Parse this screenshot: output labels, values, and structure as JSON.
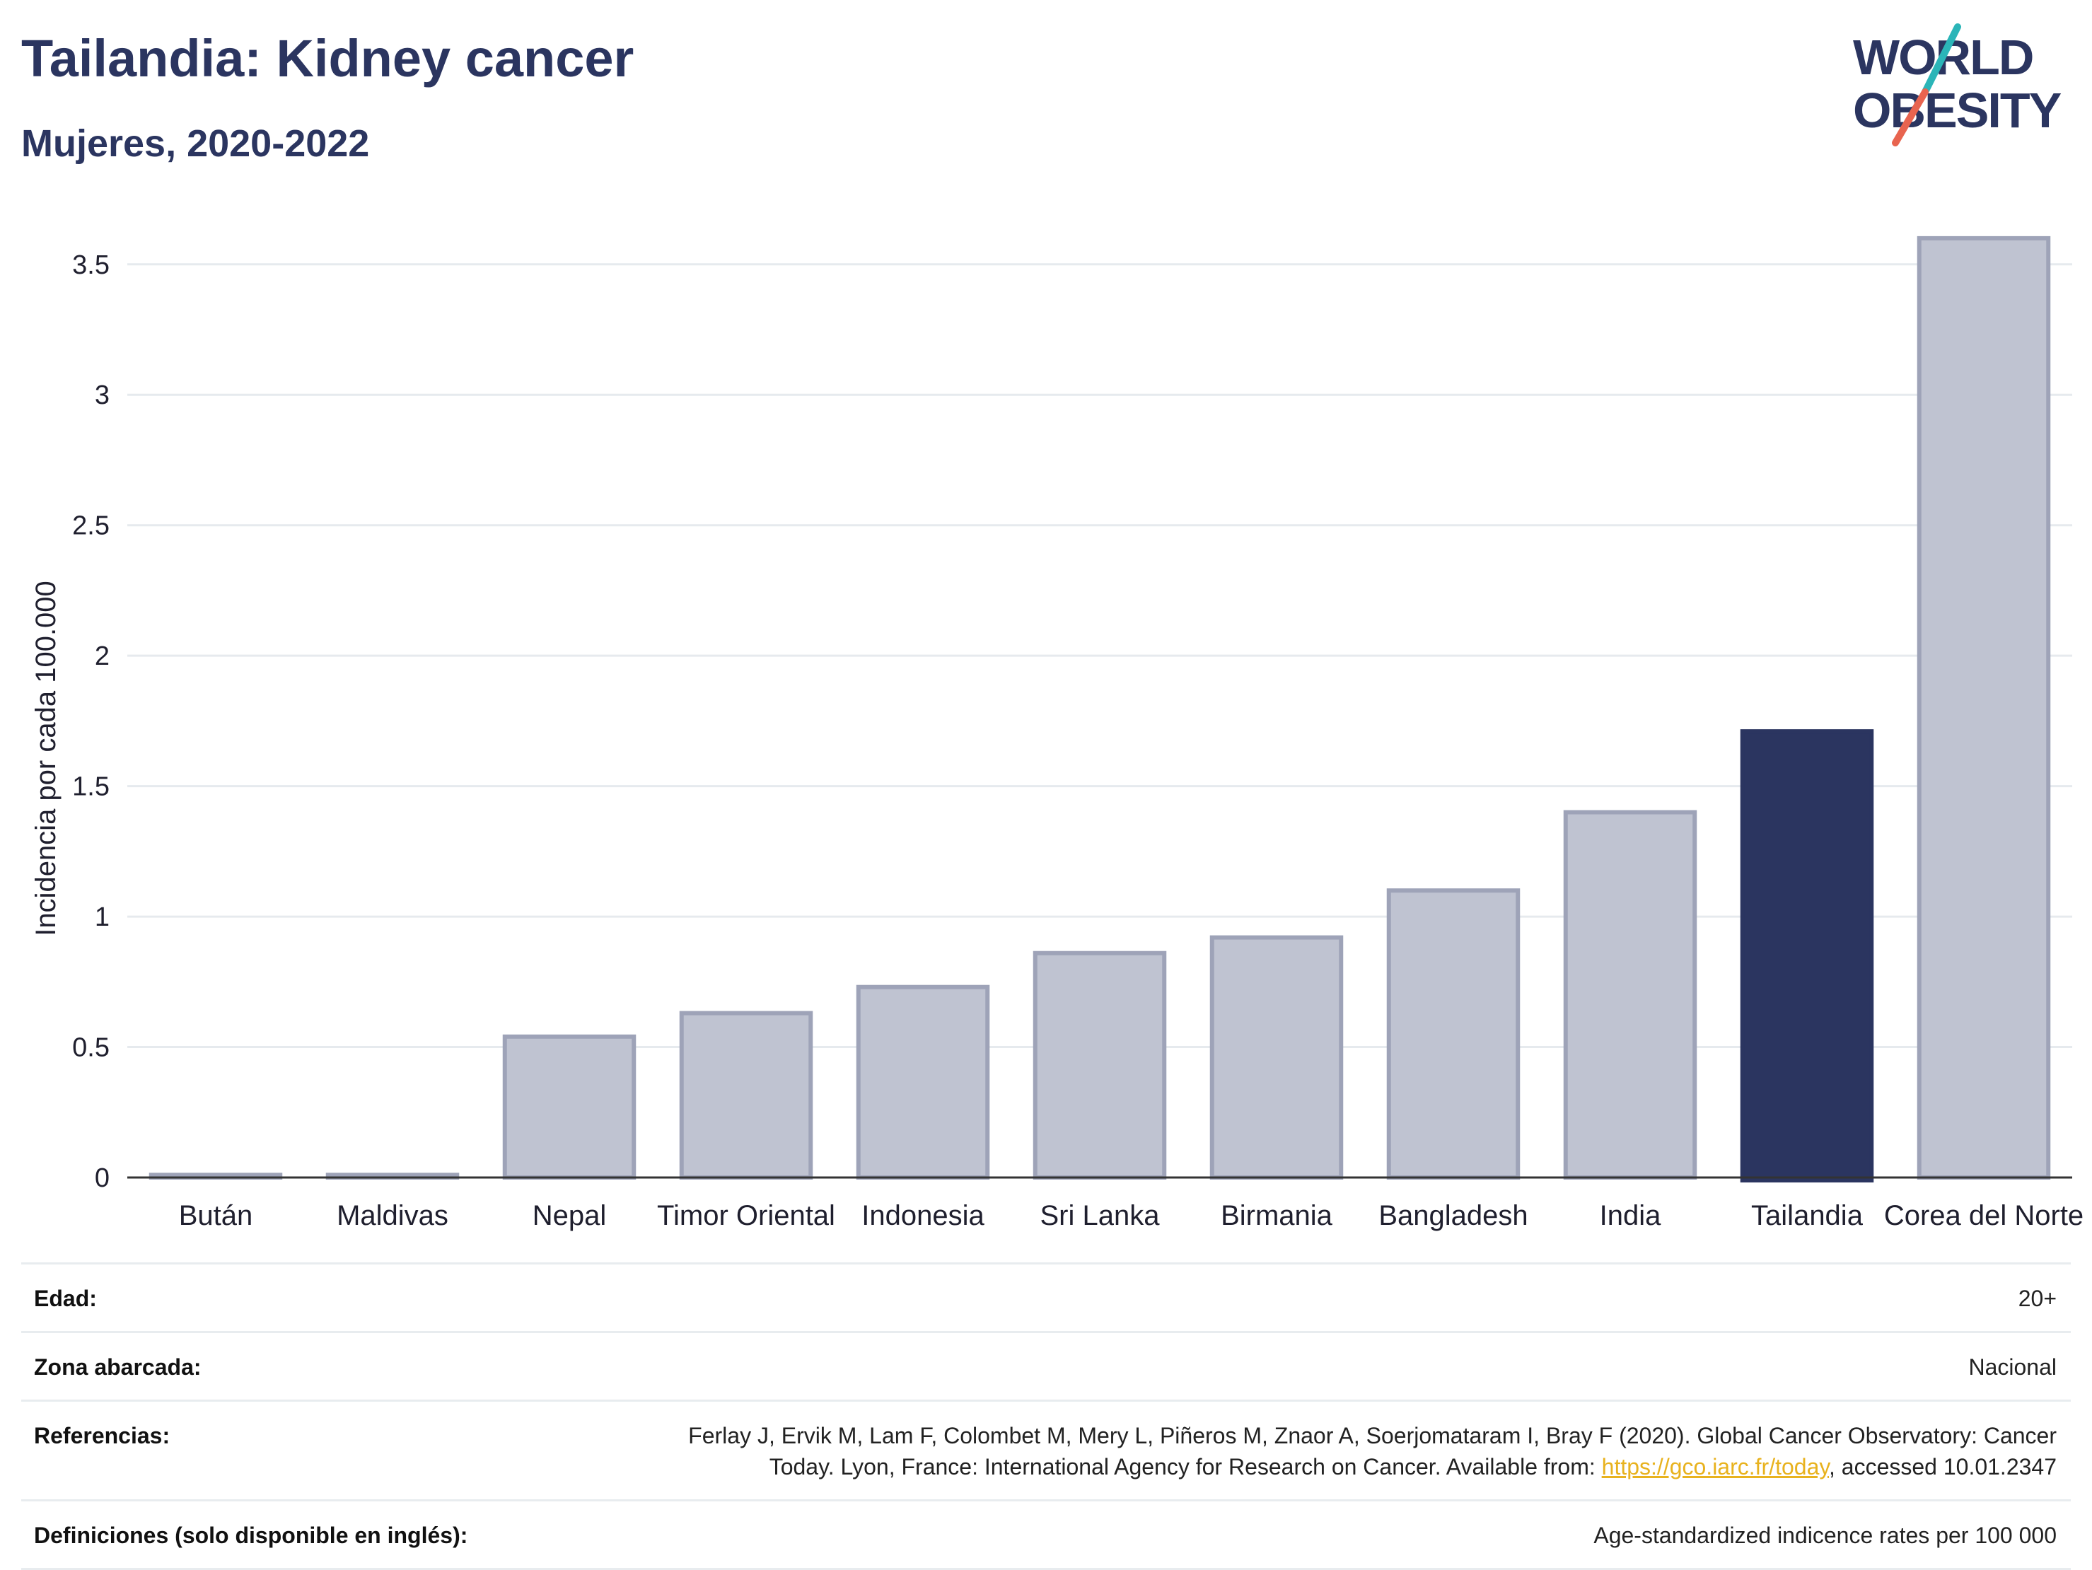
{
  "header": {
    "title": "Tailandia: Kidney cancer",
    "subtitle": "Mujeres, 2020-2022"
  },
  "logo": {
    "line1": "WORLD",
    "line2": "OBESITY",
    "colors": {
      "text": "#2b3560",
      "slash_top": "#2bb5b8",
      "slash_bottom": "#e8644f"
    }
  },
  "colors": {
    "bar": "#bfc3d1",
    "bar_border": "#9ea3b8",
    "bar_highlight": "#2b3560",
    "grid": "#e6eaee",
    "axis": "#333333"
  },
  "chart_data": {
    "type": "bar",
    "categories": [
      "Bután",
      "Maldivas",
      "Nepal",
      "Timor Oriental",
      "Indonesia",
      "Sri Lanka",
      "Birmania",
      "Bangladesh",
      "India",
      "Tailandia",
      "Corea del Norte"
    ],
    "values": [
      0.01,
      0.01,
      0.54,
      0.63,
      0.73,
      0.86,
      0.92,
      1.1,
      1.4,
      1.71,
      3.6
    ],
    "highlight": "Tailandia",
    "title": "Tailandia: Kidney cancer",
    "subtitle": "Mujeres, 2020-2022",
    "xlabel": "",
    "ylabel": "Incidencia por cada 100.000",
    "ylim": [
      0,
      3.7
    ],
    "yticks": [
      0,
      0.5,
      1,
      1.5,
      2,
      2.5,
      3,
      3.5
    ],
    "ytick_labels": [
      "0",
      "0.5",
      "1",
      "1.5",
      "2",
      "2.5",
      "3",
      "3.5"
    ],
    "grid": true,
    "legend": "none"
  },
  "meta": {
    "rows": [
      {
        "label": "Edad:",
        "value": "20+"
      },
      {
        "label": "Zona abarcada:",
        "value": "Nacional"
      },
      {
        "label": "Referencias:",
        "value_line1": "Ferlay J, Ervik M, Lam F, Colombet M, Mery L, Piñeros M, Znaor A, Soerjomataram I, Bray F (2020). Global Cancer Observatory: Cancer",
        "value_line2_pre": "Today. Lyon, France: International Agency for Research on Cancer. Available from: ",
        "link": "https://gco.iarc.fr/today",
        "value_line2_post": ", accessed 10.01.2347"
      },
      {
        "label": "Definiciones (solo disponible en inglés):",
        "value": "Age-standardized indicence rates per 100 000"
      }
    ]
  }
}
